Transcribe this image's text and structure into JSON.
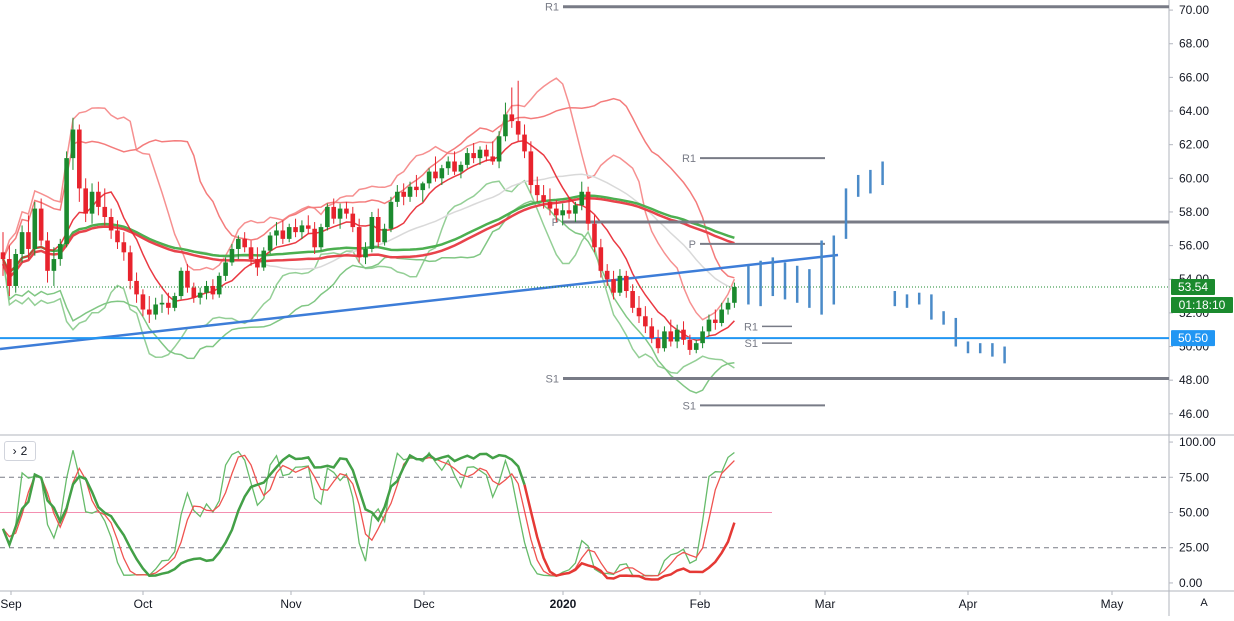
{
  "colors": {
    "up": "#26a69a",
    "up_candle": "#1b8a2e",
    "down_candle": "#e8232d",
    "ma_long": "#e8434b",
    "ma_mid": "#4caf50",
    "ma_short": "#d9d9d9",
    "bb_upper": "#f47c7c",
    "bb_lower": "#81c784",
    "trend": "#3d7dd8",
    "support": "#2196f3",
    "pivot": "#787b86",
    "projection": "#4a8ac8",
    "last_price_bg": "#1b8a2e",
    "support_label_bg": "#2196f3"
  },
  "indicator_pane": {
    "toggle_label": "2",
    "toggle_icon": "chevron-right-icon"
  },
  "price_scale": {
    "last_price": "53.54",
    "countdown": "01:18:10",
    "support_value": "50.50"
  },
  "auto_scale_label": "A",
  "chart_data": {
    "type": "candlestick",
    "x_axis_labels": [
      "Sep",
      "Oct",
      "Nov",
      "Dec",
      "2020",
      "Feb",
      "Mar",
      "Apr",
      "May"
    ],
    "y_ticks": [
      "70.00",
      "68.00",
      "66.00",
      "64.00",
      "62.00",
      "60.00",
      "58.00",
      "56.00",
      "54.00",
      "52.00",
      "50.00",
      "48.00",
      "46.00"
    ],
    "y_range": [
      44.8,
      70.6
    ],
    "osc_ticks": [
      "100.00",
      "75.00",
      "50.00",
      "25.00",
      "0.00"
    ],
    "osc_range": [
      -5,
      105
    ],
    "candles": [
      [
        55.6,
        56.8,
        54.2,
        55.2
      ],
      [
        55.2,
        56.0,
        53.0,
        53.6
      ],
      [
        53.6,
        55.8,
        53.2,
        55.5
      ],
      [
        55.5,
        57.2,
        55.0,
        56.8
      ],
      [
        56.8,
        57.8,
        55.2,
        55.8
      ],
      [
        55.8,
        58.6,
        55.4,
        58.2
      ],
      [
        58.2,
        58.8,
        56.0,
        56.3
      ],
      [
        56.3,
        56.8,
        53.8,
        54.5
      ],
      [
        54.5,
        55.9,
        53.6,
        55.2
      ],
      [
        55.2,
        56.4,
        54.8,
        56.1
      ],
      [
        56.1,
        61.6,
        55.9,
        61.2
      ],
      [
        61.2,
        63.6,
        60.5,
        62.9
      ],
      [
        62.9,
        63.2,
        58.6,
        59.4
      ],
      [
        59.4,
        60.0,
        57.4,
        57.9
      ],
      [
        57.9,
        59.7,
        57.3,
        59.2
      ],
      [
        59.2,
        59.8,
        57.8,
        58.3
      ],
      [
        58.3,
        59.4,
        57.2,
        57.7
      ],
      [
        57.7,
        58.2,
        56.4,
        56.9
      ],
      [
        56.9,
        57.5,
        55.8,
        56.2
      ],
      [
        56.2,
        56.8,
        55.1,
        55.6
      ],
      [
        55.6,
        56.0,
        53.4,
        53.9
      ],
      [
        53.9,
        54.4,
        52.6,
        53.1
      ],
      [
        53.1,
        53.4,
        51.8,
        52.2
      ],
      [
        52.2,
        53.0,
        51.4,
        51.9
      ],
      [
        51.9,
        52.9,
        51.6,
        52.5
      ],
      [
        52.5,
        53.1,
        52.0,
        52.6
      ],
      [
        52.6,
        53.2,
        51.9,
        52.3
      ],
      [
        52.3,
        53.2,
        52.1,
        53.0
      ],
      [
        53.0,
        54.7,
        52.8,
        54.5
      ],
      [
        54.5,
        54.9,
        53.2,
        53.5
      ],
      [
        53.5,
        53.8,
        52.6,
        52.9
      ],
      [
        52.9,
        53.5,
        52.5,
        53.2
      ],
      [
        53.2,
        53.9,
        52.8,
        53.6
      ],
      [
        53.6,
        54.0,
        52.8,
        53.1
      ],
      [
        53.1,
        54.4,
        52.9,
        54.2
      ],
      [
        54.2,
        55.3,
        53.9,
        55.0
      ],
      [
        55.0,
        56.1,
        54.8,
        55.8
      ],
      [
        55.8,
        56.6,
        55.2,
        56.4
      ],
      [
        56.4,
        56.8,
        55.6,
        55.9
      ],
      [
        55.9,
        56.3,
        54.8,
        55.2
      ],
      [
        55.2,
        55.9,
        54.2,
        54.7
      ],
      [
        54.7,
        55.9,
        54.5,
        55.7
      ],
      [
        55.7,
        56.8,
        55.5,
        56.6
      ],
      [
        56.6,
        57.4,
        56.0,
        56.9
      ],
      [
        56.9,
        57.5,
        56.1,
        56.4
      ],
      [
        56.4,
        57.3,
        56.2,
        57.1
      ],
      [
        57.1,
        57.6,
        56.5,
        56.8
      ],
      [
        56.8,
        57.5,
        56.4,
        57.2
      ],
      [
        57.2,
        57.8,
        56.7,
        57.0
      ],
      [
        57.0,
        57.4,
        55.5,
        55.9
      ],
      [
        55.9,
        57.3,
        55.7,
        57.1
      ],
      [
        57.1,
        58.5,
        56.9,
        58.3
      ],
      [
        58.3,
        58.8,
        57.3,
        57.6
      ],
      [
        57.6,
        58.5,
        57.0,
        58.2
      ],
      [
        58.2,
        58.6,
        57.6,
        57.9
      ],
      [
        57.9,
        58.3,
        56.8,
        57.1
      ],
      [
        57.1,
        57.6,
        55.0,
        55.3
      ],
      [
        55.3,
        56.2,
        54.9,
        55.8
      ],
      [
        55.8,
        58.0,
        55.6,
        57.7
      ],
      [
        57.7,
        58.2,
        55.9,
        56.2
      ],
      [
        56.2,
        57.3,
        56.0,
        57.0
      ],
      [
        57.0,
        58.9,
        56.8,
        58.6
      ],
      [
        58.6,
        59.6,
        58.3,
        59.2
      ],
      [
        59.2,
        59.7,
        58.4,
        58.9
      ],
      [
        58.9,
        59.8,
        58.6,
        59.5
      ],
      [
        59.5,
        60.2,
        58.9,
        59.3
      ],
      [
        59.3,
        59.8,
        58.6,
        59.7
      ],
      [
        59.7,
        60.6,
        59.4,
        60.4
      ],
      [
        60.4,
        61.3,
        59.8,
        60.0
      ],
      [
        60.0,
        60.8,
        59.6,
        60.6
      ],
      [
        60.6,
        61.3,
        60.2,
        61.0
      ],
      [
        61.0,
        61.6,
        60.2,
        60.4
      ],
      [
        60.4,
        61.0,
        60.0,
        60.8
      ],
      [
        60.8,
        61.8,
        60.6,
        61.5
      ],
      [
        61.5,
        62.1,
        60.9,
        61.2
      ],
      [
        61.2,
        61.9,
        60.8,
        61.7
      ],
      [
        61.7,
        62.0,
        61.0,
        61.3
      ],
      [
        61.3,
        62.2,
        60.8,
        61.0
      ],
      [
        61.0,
        62.8,
        60.6,
        62.5
      ],
      [
        62.5,
        64.5,
        62.2,
        63.8
      ],
      [
        63.8,
        65.4,
        63.0,
        63.4
      ],
      [
        63.4,
        65.8,
        62.2,
        62.6
      ],
      [
        62.6,
        63.2,
        61.2,
        61.6
      ],
      [
        61.6,
        62.2,
        59.1,
        59.6
      ],
      [
        59.6,
        60.1,
        58.6,
        59.0
      ],
      [
        59.0,
        59.6,
        58.2,
        58.6
      ],
      [
        58.6,
        59.4,
        57.8,
        58.2
      ],
      [
        58.2,
        58.7,
        57.4,
        57.8
      ],
      [
        57.8,
        58.5,
        57.2,
        58.1
      ],
      [
        58.1,
        58.9,
        57.6,
        57.9
      ],
      [
        57.9,
        58.6,
        57.4,
        58.4
      ],
      [
        58.4,
        59.8,
        58.1,
        59.2
      ],
      [
        59.2,
        59.5,
        56.9,
        57.3
      ],
      [
        57.3,
        57.8,
        55.6,
        55.9
      ],
      [
        55.9,
        56.4,
        54.1,
        54.5
      ],
      [
        54.5,
        54.9,
        53.6,
        54.0
      ],
      [
        54.0,
        54.5,
        52.8,
        53.2
      ],
      [
        53.2,
        54.6,
        53.0,
        54.2
      ],
      [
        54.2,
        54.5,
        52.9,
        53.3
      ],
      [
        53.3,
        53.7,
        52.0,
        52.3
      ],
      [
        52.3,
        53.0,
        51.4,
        51.8
      ],
      [
        51.8,
        52.4,
        50.8,
        51.2
      ],
      [
        51.2,
        51.7,
        50.2,
        50.5
      ],
      [
        50.5,
        51.0,
        49.6,
        49.9
      ],
      [
        49.9,
        51.2,
        49.7,
        50.9
      ],
      [
        50.9,
        51.6,
        50.0,
        50.3
      ],
      [
        50.3,
        51.3,
        49.9,
        51.0
      ],
      [
        51.0,
        51.5,
        50.1,
        50.4
      ],
      [
        50.4,
        50.7,
        49.5,
        49.8
      ],
      [
        49.8,
        50.4,
        49.6,
        50.2
      ],
      [
        50.2,
        51.2,
        49.9,
        50.9
      ],
      [
        50.9,
        51.9,
        50.6,
        51.6
      ],
      [
        51.6,
        52.2,
        51.0,
        51.4
      ],
      [
        51.4,
        52.6,
        51.2,
        52.2
      ],
      [
        52.2,
        52.9,
        51.9,
        52.6
      ],
      [
        52.6,
        53.8,
        52.3,
        53.54
      ]
    ],
    "projection_bars": [
      [
        52.5,
        54.8
      ],
      [
        52.4,
        55.1
      ],
      [
        53.0,
        55.3
      ],
      [
        52.8,
        55.0
      ],
      [
        52.6,
        54.8
      ],
      [
        52.3,
        54.6
      ],
      [
        51.9,
        56.3
      ],
      [
        52.5,
        56.6
      ],
      [
        56.4,
        59.4
      ],
      [
        58.9,
        60.2
      ],
      [
        59.1,
        60.5
      ],
      [
        59.6,
        61.0
      ],
      [
        52.4,
        53.3
      ],
      [
        52.3,
        53.1
      ],
      [
        52.5,
        53.2
      ],
      [
        51.6,
        53.1
      ],
      [
        51.3,
        52.1
      ],
      [
        50.0,
        51.7
      ],
      [
        49.6,
        50.3
      ],
      [
        49.6,
        50.2
      ],
      [
        49.4,
        50.2
      ],
      [
        49.0,
        50.0
      ]
    ],
    "pivot_levels": {
      "weekly": {
        "R1": 70.2,
        "P": 57.4,
        "S1": 48.1
      },
      "monthly": {
        "R1": 61.2,
        "P": 56.1,
        "S1": 46.5
      },
      "short": {
        "R1": 51.2,
        "S1": 50.2
      }
    },
    "horizontal_level": 50.5,
    "last_price": 53.54,
    "oscillator_levels": [
      75,
      50,
      25
    ]
  }
}
